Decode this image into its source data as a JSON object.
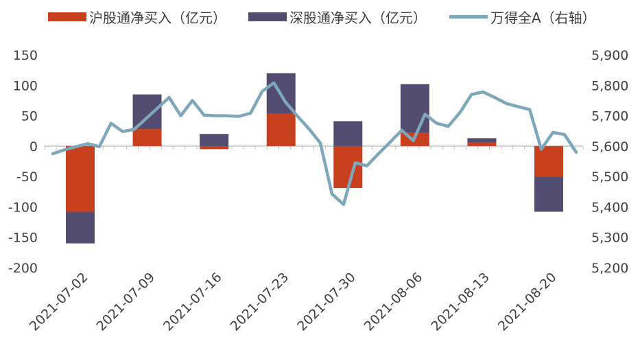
{
  "chart_data": {
    "type": "bar",
    "legend": {
      "sh_label": "沪股通净买入（亿元）",
      "sz_label": "深股通净买入（亿元）",
      "wind_label": "万得全A（右轴）",
      "placement": "top"
    },
    "colors": {
      "sh": "#C8401E",
      "sz": "#524D70",
      "wind": "#7FA7BA",
      "axis": "#BFBFBF",
      "text": "#404040"
    },
    "y_left": {
      "min": -200,
      "max": 150,
      "ticks": [
        150,
        100,
        50,
        0,
        -50,
        -100,
        -150,
        -200
      ],
      "tick_labels": [
        "150",
        "100",
        "50",
        "0",
        "-50",
        "-100",
        "-150",
        "-200"
      ]
    },
    "y_right": {
      "min": 5200,
      "max": 5900,
      "ticks": [
        5900,
        5800,
        5700,
        5600,
        5500,
        5400,
        5300,
        5200
      ],
      "tick_labels": [
        "5,900",
        "5,800",
        "5,700",
        "5,600",
        "5,500",
        "5,400",
        "5,300",
        "5,200"
      ]
    },
    "x_tick_labels": [
      "2021-07-02",
      "2021-07-09",
      "2021-07-16",
      "2021-07-23",
      "2021-07-30",
      "2021-08-06",
      "2021-08-13",
      "2021-08-20"
    ],
    "grid": false,
    "bar_series": [
      {
        "name": "沪股通净买入（亿元）",
        "values": [
          -108,
          28,
          -5,
          53,
          -69,
          22,
          6,
          -50
        ]
      },
      {
        "name": "深股通净买入（亿元）",
        "values": [
          -52,
          57,
          20,
          67,
          41,
          80,
          7,
          -58
        ]
      }
    ],
    "line_series": {
      "name": "万得全A（右轴）",
      "values": [
        5575,
        5588,
        5598,
        5608,
        5598,
        5675,
        5648,
        5655,
        5690,
        5725,
        5760,
        5700,
        5750,
        5702,
        5700,
        5700,
        5698,
        5708,
        5780,
        5808,
        5745,
        5700,
        5658,
        5610,
        5443,
        5408,
        5545,
        5535,
        5575,
        5613,
        5652,
        5618,
        5705,
        5675,
        5665,
        5710,
        5770,
        5778,
        5760,
        5740,
        5730,
        5720,
        5590,
        5645,
        5638,
        5580
      ]
    }
  }
}
